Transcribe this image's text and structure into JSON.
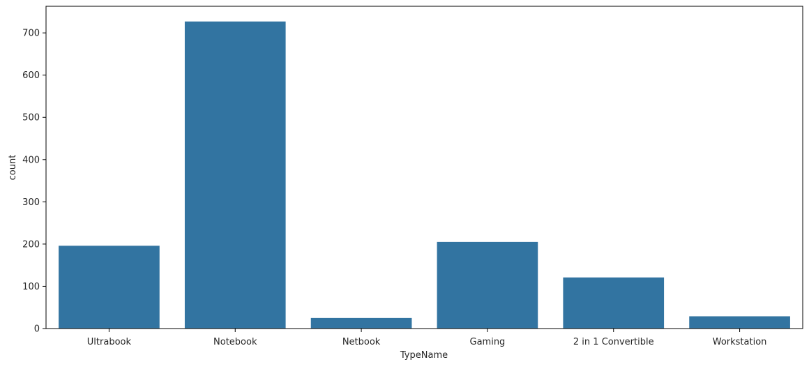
{
  "chart_data": {
    "type": "bar",
    "title": "",
    "xlabel": "TypeName",
    "ylabel": "count",
    "categories": [
      "Ultrabook",
      "Notebook",
      "Netbook",
      "Gaming",
      "2 in 1 Convertible",
      "Workstation"
    ],
    "values": [
      196,
      727,
      25,
      205,
      121,
      29
    ],
    "ylim": [
      0,
      763
    ],
    "yticks": [
      0,
      100,
      200,
      300,
      400,
      500,
      600,
      700
    ],
    "grid": false,
    "bar_color": "#3274a1"
  }
}
